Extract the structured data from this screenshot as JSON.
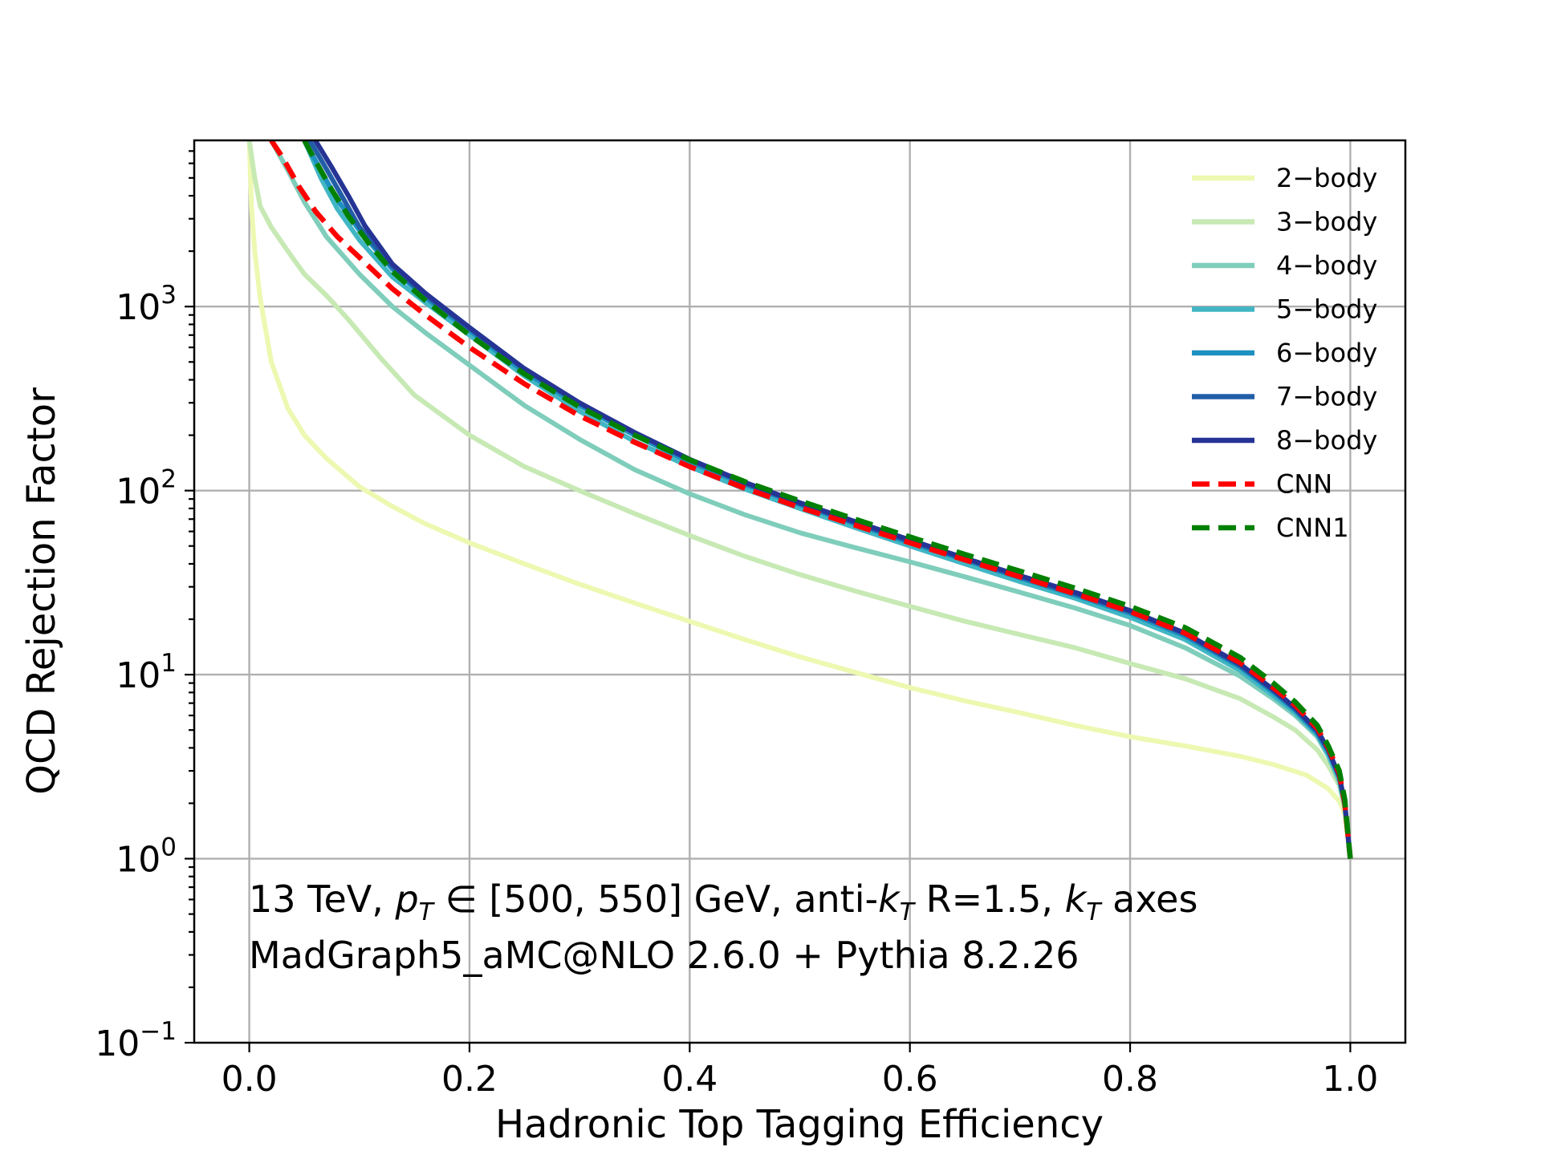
{
  "chart_data": {
    "type": "line",
    "title": "",
    "xlabel": "Hadronic Top Tagging Efficiency",
    "ylabel": "QCD Rejection Factor",
    "xlim": [
      -0.05,
      1.05
    ],
    "ylim": [
      0.1,
      8000
    ],
    "yscale": "log",
    "grid": true,
    "legend_position": "top-right",
    "x_ticks": [
      {
        "value": 0.0,
        "label": "0.0"
      },
      {
        "value": 0.2,
        "label": "0.2"
      },
      {
        "value": 0.4,
        "label": "0.4"
      },
      {
        "value": 0.6,
        "label": "0.6"
      },
      {
        "value": 0.8,
        "label": "0.8"
      },
      {
        "value": 1.0,
        "label": "1.0"
      }
    ],
    "y_ticks": [
      {
        "value": 0.1,
        "base": "10",
        "exp": "−1"
      },
      {
        "value": 1,
        "base": "10",
        "exp": "0"
      },
      {
        "value": 10,
        "base": "10",
        "exp": "1"
      },
      {
        "value": 100,
        "base": "10",
        "exp": "2"
      },
      {
        "value": 1000,
        "base": "10",
        "exp": "3"
      }
    ],
    "annotations": {
      "line1": {
        "pre": "13 TeV, ",
        "p": "p",
        "p_sub": "T",
        "mid": " ∈ [500, 550] GeV, anti-",
        "k": "k",
        "k_sub": "T",
        "mid2": " R=1.5, ",
        "k2": "k",
        "k2_sub": "T",
        "post": " axes"
      },
      "line2": "MadGraph5_aMC@NLO 2.6.0 + Pythia 8.2.26"
    },
    "series": [
      {
        "name": "2−body",
        "color": "#edf8b1",
        "dashed": false,
        "x": [
          0.0,
          0.002,
          0.005,
          0.01,
          0.02,
          0.035,
          0.05,
          0.07,
          0.1,
          0.13,
          0.16,
          0.2,
          0.25,
          0.3,
          0.35,
          0.4,
          0.45,
          0.5,
          0.55,
          0.6,
          0.65,
          0.7,
          0.75,
          0.8,
          0.85,
          0.9,
          0.93,
          0.96,
          0.98,
          0.99,
          0.995,
          1.0
        ],
        "values": [
          8000,
          3500,
          2000,
          1100,
          500,
          280,
          200,
          150,
          105,
          82,
          66,
          52,
          40,
          31,
          24.5,
          19.5,
          15.5,
          12.5,
          10.3,
          8.5,
          7.2,
          6.2,
          5.3,
          4.6,
          4.1,
          3.6,
          3.25,
          2.85,
          2.4,
          2.05,
          1.75,
          1.0
        ]
      },
      {
        "name": "3−body",
        "color": "#c7e9b4",
        "dashed": false,
        "x": [
          0.0,
          0.005,
          0.01,
          0.02,
          0.035,
          0.05,
          0.07,
          0.09,
          0.12,
          0.15,
          0.2,
          0.25,
          0.3,
          0.35,
          0.4,
          0.45,
          0.5,
          0.55,
          0.6,
          0.65,
          0.7,
          0.75,
          0.8,
          0.85,
          0.9,
          0.93,
          0.95,
          0.97,
          0.98,
          0.99,
          0.995,
          1.0
        ],
        "values": [
          8000,
          5000,
          3500,
          2700,
          2000,
          1500,
          1150,
          850,
          520,
          330,
          200,
          135,
          100,
          75,
          57,
          44,
          35,
          28.5,
          23.5,
          19.5,
          16.5,
          14,
          11.5,
          9.5,
          7.4,
          5.9,
          5.0,
          3.9,
          3.2,
          2.5,
          1.9,
          1.0
        ]
      },
      {
        "name": "4−body",
        "color": "#7fcdbb",
        "dashed": false,
        "x": [
          0.02,
          0.035,
          0.05,
          0.07,
          0.1,
          0.13,
          0.16,
          0.2,
          0.25,
          0.3,
          0.35,
          0.4,
          0.45,
          0.5,
          0.55,
          0.6,
          0.65,
          0.7,
          0.75,
          0.8,
          0.85,
          0.9,
          0.93,
          0.95,
          0.97,
          0.98,
          0.99,
          0.995,
          1.0
        ],
        "values": [
          8000,
          5500,
          3700,
          2400,
          1500,
          1000,
          720,
          480,
          290,
          190,
          130,
          96,
          74,
          59,
          49,
          41,
          34,
          28,
          23,
          18.5,
          14,
          9.8,
          7.4,
          6.0,
          4.6,
          3.6,
          2.6,
          1.9,
          1.0
        ]
      },
      {
        "name": "5−body",
        "color": "#41b6c4",
        "dashed": false,
        "x": [
          0.05,
          0.065,
          0.08,
          0.1,
          0.13,
          0.16,
          0.2,
          0.25,
          0.3,
          0.35,
          0.4,
          0.45,
          0.5,
          0.55,
          0.6,
          0.65,
          0.7,
          0.75,
          0.8,
          0.85,
          0.9,
          0.93,
          0.95,
          0.97,
          0.98,
          0.99,
          0.995,
          1.0
        ],
        "values": [
          8000,
          5000,
          3400,
          2300,
          1450,
          1050,
          700,
          420,
          270,
          185,
          135,
          102,
          80,
          63,
          50,
          40,
          32,
          26,
          20.5,
          15.5,
          10.5,
          7.7,
          6.2,
          4.7,
          3.7,
          2.7,
          2.0,
          1.0
        ]
      },
      {
        "name": "6−body",
        "color": "#1d91c0",
        "dashed": false,
        "x": [
          0.05,
          0.065,
          0.08,
          0.1,
          0.13,
          0.16,
          0.2,
          0.25,
          0.3,
          0.35,
          0.4,
          0.45,
          0.5,
          0.55,
          0.6,
          0.65,
          0.7,
          0.75,
          0.8,
          0.85,
          0.9,
          0.93,
          0.95,
          0.97,
          0.98,
          0.99,
          0.995,
          1.0
        ],
        "values": [
          8000,
          5500,
          3800,
          2600,
          1600,
          1120,
          740,
          440,
          290,
          200,
          143,
          108,
          84,
          66,
          52,
          42,
          33.5,
          27,
          21.5,
          16.2,
          11,
          8.0,
          6.4,
          4.8,
          3.8,
          2.8,
          2.0,
          1.0
        ]
      },
      {
        "name": "7−body",
        "color": "#225ea8",
        "dashed": false,
        "x": [
          0.055,
          0.07,
          0.085,
          0.1,
          0.13,
          0.16,
          0.2,
          0.25,
          0.3,
          0.35,
          0.4,
          0.45,
          0.5,
          0.55,
          0.6,
          0.65,
          0.7,
          0.75,
          0.8,
          0.85,
          0.9,
          0.93,
          0.95,
          0.97,
          0.98,
          0.99,
          0.995,
          1.0
        ],
        "values": [
          8000,
          5600,
          3900,
          2700,
          1650,
          1150,
          760,
          455,
          298,
          205,
          147,
          110,
          85,
          67,
          53,
          42.5,
          34,
          27.5,
          22,
          16.6,
          11.2,
          8.2,
          6.5,
          4.9,
          3.9,
          2.8,
          2.0,
          1.0
        ]
      },
      {
        "name": "8−body",
        "color": "#253494",
        "dashed": false,
        "x": [
          0.06,
          0.075,
          0.09,
          0.105,
          0.13,
          0.16,
          0.2,
          0.25,
          0.3,
          0.35,
          0.4,
          0.45,
          0.5,
          0.55,
          0.6,
          0.65,
          0.7,
          0.75,
          0.8,
          0.85,
          0.9,
          0.93,
          0.95,
          0.97,
          0.98,
          0.99,
          0.995,
          1.0
        ],
        "values": [
          8000,
          5700,
          4000,
          2750,
          1700,
          1180,
          770,
          460,
          300,
          207,
          148,
          111,
          86,
          68,
          54,
          43,
          34.5,
          28,
          22.3,
          16.8,
          11.4,
          8.3,
          6.6,
          5.0,
          3.9,
          2.8,
          2.0,
          1.0
        ]
      },
      {
        "name": "CNN",
        "color": "#ff0000",
        "dashed": true,
        "x": [
          0.02,
          0.03,
          0.045,
          0.06,
          0.08,
          0.1,
          0.13,
          0.16,
          0.2,
          0.25,
          0.3,
          0.35,
          0.4,
          0.45,
          0.5,
          0.55,
          0.6,
          0.65,
          0.7,
          0.75,
          0.8,
          0.85,
          0.9,
          0.93,
          0.95,
          0.97,
          0.98,
          0.99,
          0.995,
          1.0
        ],
        "values": [
          8000,
          6500,
          4500,
          3300,
          2400,
          1850,
          1250,
          900,
          600,
          380,
          255,
          183,
          135,
          103,
          81,
          65,
          52,
          42,
          34,
          27.5,
          22,
          16.8,
          11.6,
          8.5,
          6.8,
          5.1,
          4.0,
          2.9,
          2.0,
          1.0
        ]
      },
      {
        "name": "CNN1",
        "color": "#008000",
        "dashed": true,
        "x": [
          0.05,
          0.06,
          0.075,
          0.09,
          0.11,
          0.13,
          0.16,
          0.2,
          0.25,
          0.3,
          0.35,
          0.4,
          0.45,
          0.5,
          0.55,
          0.6,
          0.65,
          0.7,
          0.75,
          0.8,
          0.85,
          0.9,
          0.93,
          0.95,
          0.97,
          0.98,
          0.99,
          0.995,
          1.0
        ],
        "values": [
          8000,
          6200,
          4300,
          3100,
          2150,
          1550,
          1080,
          700,
          430,
          285,
          200,
          147,
          112,
          88,
          70,
          56,
          45,
          36.5,
          29.5,
          23.5,
          18,
          12.4,
          9.0,
          7.1,
          5.3,
          4.1,
          3.0,
          2.1,
          1.0
        ]
      }
    ]
  }
}
